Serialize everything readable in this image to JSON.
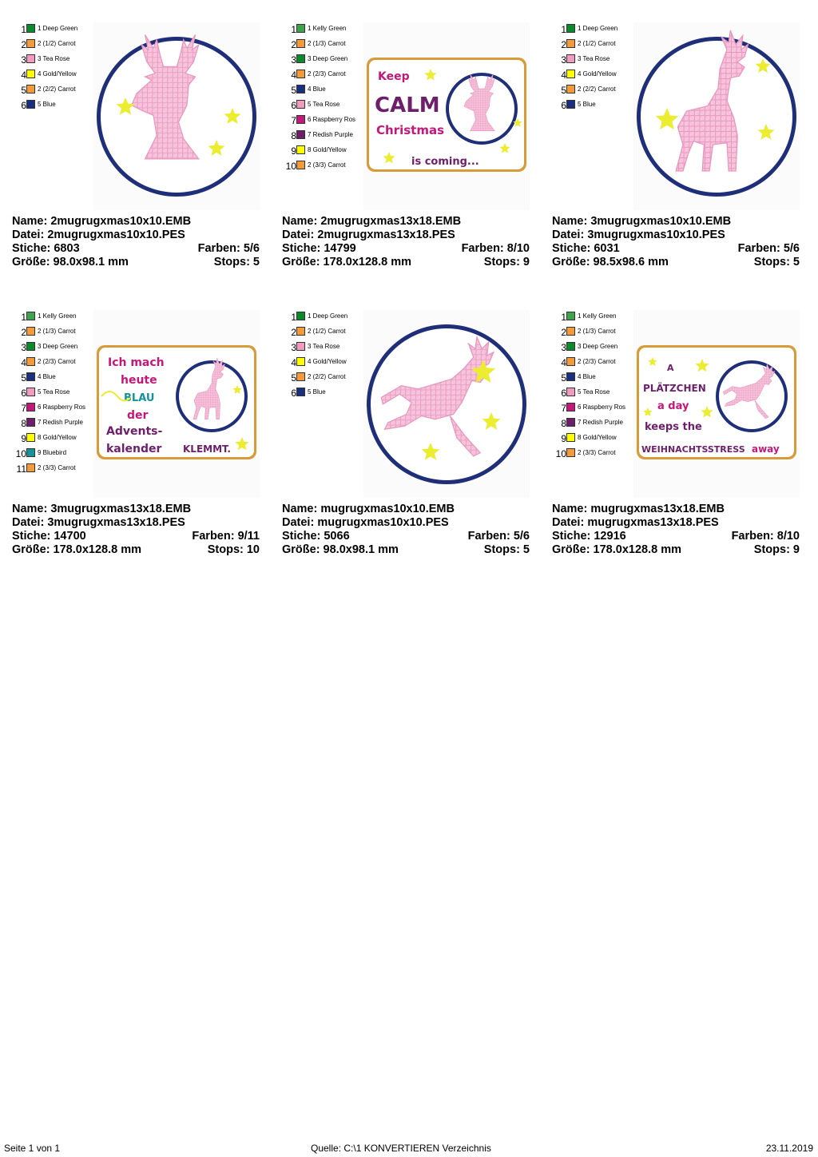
{
  "designs": [
    {
      "colors": [
        {
          "num": "1",
          "label": "1 Deep Green",
          "hex": "#0a8a2a"
        },
        {
          "num": "2",
          "label": "2 (1/2) Carrot",
          "hex": "#f59a38"
        },
        {
          "num": "3",
          "label": "3 Tea Rose",
          "hex": "#f29ac0"
        },
        {
          "num": "4",
          "label": "4 Gold/Yellow",
          "hex": "#ffff00"
        },
        {
          "num": "5",
          "label": "2 (2/2) Carrot",
          "hex": "#f59a38"
        },
        {
          "num": "6",
          "label": "5 Blue",
          "hex": "#1a2f80"
        }
      ],
      "preview": {
        "kind": "circle",
        "motif": "deer-head",
        "stars": "left"
      },
      "name_label": "Name: 2mugrugxmas10x10.EMB",
      "file_label": "Datei: 2mugrugxmas10x10.PES",
      "stitches_label": "Stiche: 6803",
      "colors_label": "Farben: 5/6",
      "size_label": "Größe: 98.0x98.1 mm",
      "stops_label": "Stops: 5"
    },
    {
      "colors": [
        {
          "num": "1",
          "label": "1 Kelly Green",
          "hex": "#3fa34d"
        },
        {
          "num": "2",
          "label": "2 (1/3) Carrot",
          "hex": "#f59a38"
        },
        {
          "num": "3",
          "label": "3 Deep Green",
          "hex": "#0a8a2a"
        },
        {
          "num": "4",
          "label": "2 (2/3) Carrot",
          "hex": "#f59a38"
        },
        {
          "num": "5",
          "label": "4 Blue",
          "hex": "#1a2f80"
        },
        {
          "num": "6",
          "label": "5 Tea Rose",
          "hex": "#f29ac0"
        },
        {
          "num": "7",
          "label": "6 Raspberry Ros",
          "hex": "#c2187a"
        },
        {
          "num": "8",
          "label": "7 Redish Purple",
          "hex": "#6e1f6c"
        },
        {
          "num": "9",
          "label": "8 Gold/Yellow",
          "hex": "#ffff00"
        },
        {
          "num": "10",
          "label": "2 (3/3) Carrot",
          "hex": "#f59a38"
        }
      ],
      "preview": {
        "kind": "rect",
        "motif": "deer-head",
        "text_lines": [
          "Keep",
          "CALM",
          "Christmas",
          "is coming..."
        ]
      },
      "name_label": "Name: 2mugrugxmas13x18.EMB",
      "file_label": "Datei: 2mugrugxmas13x18.PES",
      "stitches_label": "Stiche: 14799",
      "colors_label": "Farben: 8/10",
      "size_label": "Größe: 178.0x128.8 mm",
      "stops_label": "Stops: 9"
    },
    {
      "colors": [
        {
          "num": "1",
          "label": "1 Deep Green",
          "hex": "#0a8a2a"
        },
        {
          "num": "2",
          "label": "2 (1/2) Carrot",
          "hex": "#f59a38"
        },
        {
          "num": "3",
          "label": "3 Tea Rose",
          "hex": "#f29ac0"
        },
        {
          "num": "4",
          "label": "4 Gold/Yellow",
          "hex": "#ffff00"
        },
        {
          "num": "5",
          "label": "2 (2/2) Carrot",
          "hex": "#f59a38"
        },
        {
          "num": "6",
          "label": "5 Blue",
          "hex": "#1a2f80"
        }
      ],
      "preview": {
        "kind": "circle",
        "motif": "deer-standing",
        "stars": "both"
      },
      "name_label": "Name: 3mugrugxmas10x10.EMB",
      "file_label": "Datei: 3mugrugxmas10x10.PES",
      "stitches_label": "Stiche: 6031",
      "colors_label": "Farben: 5/6",
      "size_label": "Größe: 98.5x98.6 mm",
      "stops_label": "Stops: 5"
    },
    {
      "colors": [
        {
          "num": "1",
          "label": "1 Kelly Green",
          "hex": "#3fa34d"
        },
        {
          "num": "2",
          "label": "2 (1/3) Carrot",
          "hex": "#f59a38"
        },
        {
          "num": "3",
          "label": "3 Deep Green",
          "hex": "#0a8a2a"
        },
        {
          "num": "4",
          "label": "2 (2/3) Carrot",
          "hex": "#f59a38"
        },
        {
          "num": "5",
          "label": "4 Blue",
          "hex": "#1a2f80"
        },
        {
          "num": "6",
          "label": "5 Tea Rose",
          "hex": "#f29ac0"
        },
        {
          "num": "7",
          "label": "6 Raspberry Ros",
          "hex": "#c2187a"
        },
        {
          "num": "8",
          "label": "7 Redish Purple",
          "hex": "#6e1f6c"
        },
        {
          "num": "9",
          "label": "8 Gold/Yellow",
          "hex": "#ffff00"
        },
        {
          "num": "10",
          "label": "9 Bluebird",
          "hex": "#13939a"
        },
        {
          "num": "11",
          "label": "2 (3/3) Carrot",
          "hex": "#f59a38"
        }
      ],
      "preview": {
        "kind": "rect",
        "motif": "deer-standing",
        "text_lines": [
          "Ich mach",
          "heute",
          "BLAU",
          "der",
          "Advents-",
          "kalender",
          "KLEMMT."
        ]
      },
      "name_label": "Name: 3mugrugxmas13x18.EMB",
      "file_label": "Datei: 3mugrugxmas13x18.PES",
      "stitches_label": "Stiche: 14700",
      "colors_label": "Farben: 9/11",
      "size_label": "Größe: 178.0x128.8 mm",
      "stops_label": "Stops: 10"
    },
    {
      "colors": [
        {
          "num": "1",
          "label": "1 Deep Green",
          "hex": "#0a8a2a"
        },
        {
          "num": "2",
          "label": "2 (1/2) Carrot",
          "hex": "#f59a38"
        },
        {
          "num": "3",
          "label": "3 Tea Rose",
          "hex": "#f29ac0"
        },
        {
          "num": "4",
          "label": "4 Gold/Yellow",
          "hex": "#ffff00"
        },
        {
          "num": "5",
          "label": "2 (2/2) Carrot",
          "hex": "#f59a38"
        },
        {
          "num": "6",
          "label": "5 Blue",
          "hex": "#1a2f80"
        }
      ],
      "preview": {
        "kind": "circle",
        "motif": "deer-leaping",
        "stars": "right"
      },
      "name_label": "Name: mugrugxmas10x10.EMB",
      "file_label": "Datei: mugrugxmas10x10.PES",
      "stitches_label": "Stiche: 5066",
      "colors_label": "Farben: 5/6",
      "size_label": "Größe: 98.0x98.1 mm",
      "stops_label": "Stops: 5"
    },
    {
      "colors": [
        {
          "num": "1",
          "label": "1 Kelly Green",
          "hex": "#3fa34d"
        },
        {
          "num": "2",
          "label": "2 (1/3) Carrot",
          "hex": "#f59a38"
        },
        {
          "num": "3",
          "label": "3 Deep Green",
          "hex": "#0a8a2a"
        },
        {
          "num": "4",
          "label": "2 (2/3) Carrot",
          "hex": "#f59a38"
        },
        {
          "num": "5",
          "label": "4 Blue",
          "hex": "#1a2f80"
        },
        {
          "num": "6",
          "label": "5 Tea Rose",
          "hex": "#f29ac0"
        },
        {
          "num": "7",
          "label": "6 Raspberry Ros",
          "hex": "#c2187a"
        },
        {
          "num": "8",
          "label": "7 Redish Purple",
          "hex": "#6e1f6c"
        },
        {
          "num": "9",
          "label": "8 Gold/Yellow",
          "hex": "#ffff00"
        },
        {
          "num": "10",
          "label": "2 (3/3) Carrot",
          "hex": "#f59a38"
        }
      ],
      "preview": {
        "kind": "rect",
        "motif": "deer-leaping",
        "text_lines": [
          "A",
          "PLÄTZCHEN",
          "a day",
          "keeps the",
          "WEIHNACHTSSTRESS",
          "away"
        ]
      },
      "name_label": "Name: mugrugxmas13x18.EMB",
      "file_label": "Datei: mugrugxmas13x18.PES",
      "stitches_label": "Stiche: 12916",
      "colors_label": "Farben: 8/10",
      "size_label": "Größe: 178.0x128.8 mm",
      "stops_label": "Stops: 9"
    }
  ],
  "footer": {
    "page": "Seite 1 von 1",
    "source": "Quelle: C:\\1 KONVERTIEREN Verzeichnis",
    "date": "23.11.2019"
  }
}
